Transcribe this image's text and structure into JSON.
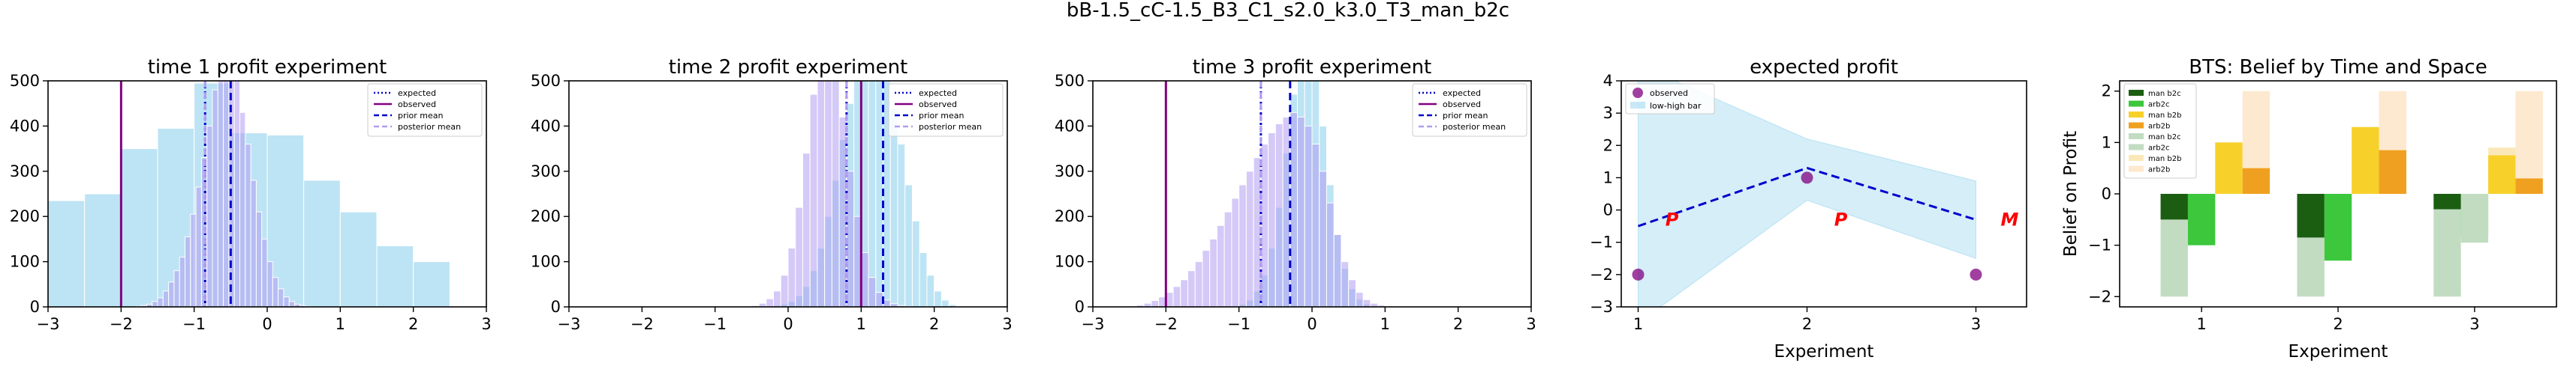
{
  "figure": {
    "title": "bB-1.5_cC-1.5_B3_C1_s2.0_k3.0_T3_man_b2c"
  },
  "colors": {
    "sky": "#87ceeb",
    "lavender": "#b19cf0",
    "purple": "#800080",
    "blue": "#0000cd",
    "red": "#ff0000",
    "dark_green": "#1b5e12",
    "green": "#3cc73c",
    "light_green": "#c2dcc2",
    "gold": "#f7d02a",
    "orange": "#f0a020",
    "light_gold": "#fbe8b8",
    "light_orange": "#fde9cf"
  },
  "chart_data": [
    {
      "type": "histogram",
      "title": "time 1 profit experiment",
      "xlim": [
        -3,
        3
      ],
      "ylim": [
        0,
        500
      ],
      "xticks": [
        "−3",
        "−2",
        "−1",
        "0",
        "1",
        "2",
        "3"
      ],
      "yticks": [
        "0",
        "100",
        "200",
        "300",
        "400",
        "500"
      ],
      "legend": [
        "expected",
        "observed",
        "prior mean",
        "posterior mean"
      ],
      "legend_position": "top-right",
      "lines": {
        "observed": -2.0,
        "prior_mean": -0.5,
        "posterior_mean": -0.85,
        "expected": -0.85
      },
      "prior_hist": {
        "start": -3.5,
        "width": 0.5,
        "counts": [
          250,
          235,
          250,
          350,
          395,
          495,
          385,
          380,
          280,
          210,
          135,
          100
        ]
      },
      "posterior_hist": {
        "start": -1.8,
        "width": 0.075,
        "counts": [
          1,
          3,
          6,
          12,
          20,
          35,
          55,
          80,
          110,
          155,
          205,
          265,
          330,
          400,
          480,
          550,
          580,
          560,
          510,
          430,
          360,
          280,
          210,
          150,
          100,
          65,
          40,
          22,
          12,
          6,
          3,
          1
        ]
      }
    },
    {
      "type": "histogram",
      "title": "time 2 profit experiment",
      "xlim": [
        -3,
        3
      ],
      "ylim": [
        0,
        500
      ],
      "xticks": [
        "−3",
        "−2",
        "−1",
        "0",
        "1",
        "2",
        "3"
      ],
      "yticks": [
        "0",
        "100",
        "200",
        "300",
        "400",
        "500"
      ],
      "legend": [
        "expected",
        "observed",
        "prior mean",
        "posterior mean"
      ],
      "legend_position": "top-right",
      "lines": {
        "observed": 1.0,
        "prior_mean": 1.3,
        "posterior_mean": 0.8,
        "expected": 0.8
      },
      "prior_hist": {
        "start": -0.4,
        "width": 0.1,
        "counts": [
          0,
          1,
          3,
          6,
          12,
          25,
          45,
          80,
          130,
          200,
          280,
          370,
          450,
          520,
          560,
          590,
          560,
          510,
          440,
          360,
          270,
          190,
          120,
          70,
          35,
          15,
          5,
          1
        ]
      },
      "posterior_hist": {
        "start": -0.6,
        "width": 0.1,
        "counts": [
          1,
          3,
          8,
          18,
          35,
          70,
          130,
          220,
          340,
          470,
          560,
          580,
          520,
          420,
          300,
          200,
          120,
          65,
          32,
          15,
          7,
          3,
          1
        ]
      }
    },
    {
      "type": "histogram",
      "title": "time 3 profit experiment",
      "xlim": [
        -3,
        3
      ],
      "ylim": [
        0,
        500
      ],
      "xticks": [
        "−3",
        "−2",
        "−1",
        "0",
        "1",
        "2",
        "3"
      ],
      "yticks": [
        "0",
        "100",
        "200",
        "300",
        "400",
        "500"
      ],
      "legend": [
        "expected",
        "observed",
        "prior mean",
        "posterior mean"
      ],
      "legend_position": "top-right",
      "lines": {
        "observed": -2.0,
        "prior_mean": -0.3,
        "posterior_mean": -0.7,
        "expected": -0.7
      },
      "prior_hist": {
        "start": -1.1,
        "width": 0.1,
        "counts": [
          2,
          6,
          15,
          35,
          70,
          130,
          220,
          340,
          470,
          560,
          590,
          520,
          400,
          270,
          160,
          85,
          40,
          17,
          6,
          2
        ]
      },
      "posterior_hist": {
        "start": -2.5,
        "width": 0.1,
        "counts": [
          2,
          4,
          8,
          14,
          22,
          32,
          45,
          60,
          80,
          100,
          125,
          150,
          180,
          210,
          240,
          270,
          300,
          330,
          360,
          385,
          405,
          420,
          430,
          420,
          400,
          360,
          300,
          230,
          160,
          100,
          60,
          32,
          16,
          8,
          4,
          2,
          1,
          1,
          1,
          1,
          2,
          1
        ]
      }
    },
    {
      "type": "line",
      "title": "expected profit",
      "xlabel": "Experiment",
      "xlim": [
        0.9,
        3.3
      ],
      "ylim": [
        -3,
        4
      ],
      "xticks": [
        "1",
        "2",
        "3"
      ],
      "yticks": [
        "−3",
        "−2",
        "−1",
        "0",
        "1",
        "2",
        "3",
        "4"
      ],
      "legend": [
        "observed",
        "low-high bar"
      ],
      "legend_position": "top-left",
      "x": [
        1,
        2,
        3
      ],
      "expected": [
        -0.5,
        1.3,
        -0.3
      ],
      "band_low": [
        -3.5,
        0.3,
        -1.5
      ],
      "band_high": [
        4.5,
        2.2,
        0.9
      ],
      "observed": [
        -2.0,
        1.0,
        -2.0
      ],
      "markers": [
        {
          "x": 1.2,
          "y": -0.3,
          "label": "P"
        },
        {
          "x": 2.2,
          "y": -0.3,
          "label": "P"
        },
        {
          "x": 3.2,
          "y": -0.3,
          "label": "M"
        }
      ]
    },
    {
      "type": "bar",
      "title": "BTS: Belief by Time and Space",
      "xlabel": "Experiment",
      "ylabel": "Belief on Profit",
      "xlim": [
        0.4,
        3.6
      ],
      "ylim": [
        -2.2,
        2.2
      ],
      "xticks": [
        "1",
        "2",
        "3"
      ],
      "yticks": [
        "−2",
        "−1",
        "0",
        "1",
        "2"
      ],
      "legend": [
        "man b2c",
        "arb2c",
        "man b2b",
        "arb2b",
        "man b2c",
        "arb2c",
        "man b2b",
        "arb2b"
      ],
      "legend_position": "top-left",
      "bar_width": 0.2,
      "categories": [
        1,
        2,
        3
      ],
      "series": [
        {
          "color": "light_green",
          "offset": -0.2,
          "values": [
            -2.0,
            -2.0,
            -2.0
          ]
        },
        {
          "color": "dark_green",
          "offset": -0.2,
          "values": [
            -0.5,
            -0.85,
            -0.3
          ]
        },
        {
          "color": "green",
          "offset": 0.0,
          "values": [
            -1.0,
            -1.3,
            -0.8
          ]
        },
        {
          "color": "light_green",
          "offset": 0.0,
          "values": [
            0,
            0,
            -0.95
          ]
        },
        {
          "color": "light_gold",
          "offset": 0.2,
          "values": [
            1.0,
            1.3,
            0.9
          ]
        },
        {
          "color": "gold",
          "offset": 0.2,
          "values": [
            1.0,
            1.3,
            0.75
          ]
        },
        {
          "color": "light_orange",
          "offset": 0.4,
          "values": [
            2.0,
            2.0,
            2.0
          ]
        },
        {
          "color": "orange",
          "offset": 0.4,
          "values": [
            0.5,
            0.85,
            0.3
          ]
        }
      ],
      "legend_colors": [
        "dark_green",
        "green",
        "gold",
        "orange",
        "light_green",
        "light_green",
        "light_gold",
        "light_orange"
      ]
    }
  ]
}
